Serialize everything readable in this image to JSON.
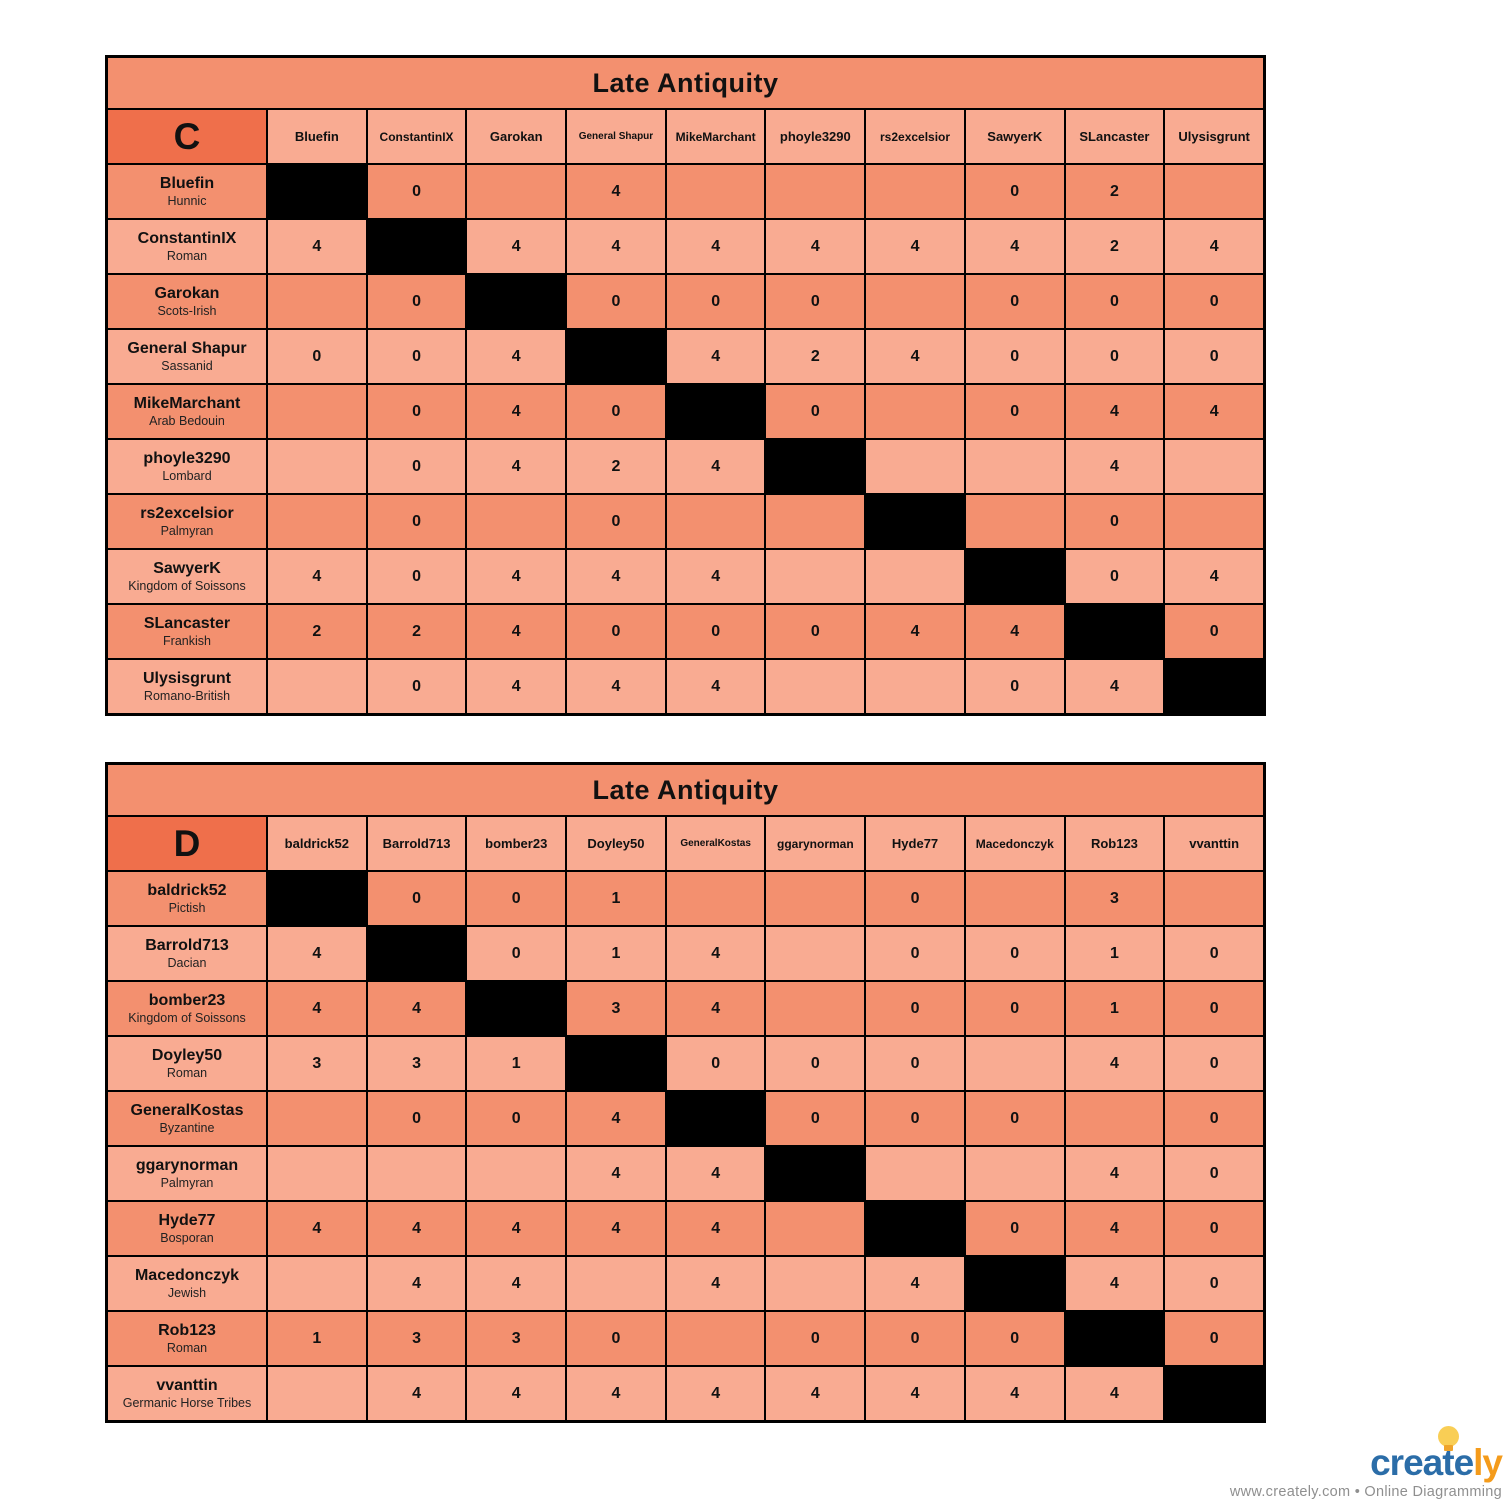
{
  "colors": {
    "row_dark": "#f3906f",
    "row_light": "#f9ab92",
    "corner": "#ef6f4b",
    "grid_line": "#000000",
    "diagonal_fill": "#000000",
    "logo_blue": "#2b6da8",
    "logo_orange": "#f49b1b"
  },
  "branding": {
    "logo_primary": "create",
    "logo_secondary": "ly",
    "tagline": "www.creately.com • Online Diagramming"
  },
  "tables": [
    {
      "title": "Late Antiquity",
      "group_label": "C",
      "columns": [
        "Bluefin",
        "ConstantinIX",
        "Garokan",
        "General Shapur",
        "MikeMarchant",
        "phoyle3290",
        "rs2excelsior",
        "SawyerK",
        "SLancaster",
        "Ulysisgrunt"
      ],
      "rows": [
        {
          "name": "Bluefin",
          "faction": "Hunnic",
          "cells": [
            null,
            "0",
            "",
            "4",
            "",
            "",
            "",
            "0",
            "2",
            ""
          ]
        },
        {
          "name": "ConstantinIX",
          "faction": "Roman",
          "cells": [
            "4",
            null,
            "4",
            "4",
            "4",
            "4",
            "4",
            "4",
            "2",
            "4"
          ]
        },
        {
          "name": "Garokan",
          "faction": "Scots-Irish",
          "cells": [
            "",
            "0",
            null,
            "0",
            "0",
            "0",
            "",
            "0",
            "0",
            "0"
          ]
        },
        {
          "name": "General Shapur",
          "faction": "Sassanid",
          "cells": [
            "0",
            "0",
            "4",
            null,
            "4",
            "2",
            "4",
            "0",
            "0",
            "0"
          ]
        },
        {
          "name": "MikeMarchant",
          "faction": "Arab Bedouin",
          "cells": [
            "",
            "0",
            "4",
            "0",
            null,
            "0",
            "",
            "0",
            "4",
            "4"
          ]
        },
        {
          "name": "phoyle3290",
          "faction": "Lombard",
          "cells": [
            "",
            "0",
            "4",
            "2",
            "4",
            null,
            "",
            "",
            "4",
            ""
          ]
        },
        {
          "name": "rs2excelsior",
          "faction": "Palmyran",
          "cells": [
            "",
            "0",
            "",
            "0",
            "",
            "",
            null,
            "",
            "0",
            ""
          ]
        },
        {
          "name": "SawyerK",
          "faction": "Kingdom of Soissons",
          "cells": [
            "4",
            "0",
            "4",
            "4",
            "4",
            "",
            "",
            null,
            "0",
            "4"
          ]
        },
        {
          "name": "SLancaster",
          "faction": "Frankish",
          "cells": [
            "2",
            "2",
            "4",
            "0",
            "0",
            "0",
            "4",
            "4",
            null,
            "0"
          ]
        },
        {
          "name": "Ulysisgrunt",
          "faction": "Romano-British",
          "cells": [
            "",
            "0",
            "4",
            "4",
            "4",
            "",
            "",
            "0",
            "4",
            null
          ]
        }
      ]
    },
    {
      "title": "Late Antiquity",
      "group_label": "D",
      "columns": [
        "baldrick52",
        "Barrold713",
        "bomber23",
        "Doyley50",
        "GeneralKostas",
        "ggarynorman",
        "Hyde77",
        "Macedonczyk",
        "Rob123",
        "vvanttin"
      ],
      "rows": [
        {
          "name": "baldrick52",
          "faction": "Pictish",
          "cells": [
            null,
            "0",
            "0",
            "1",
            "",
            "",
            "0",
            "",
            "3",
            ""
          ]
        },
        {
          "name": "Barrold713",
          "faction": "Dacian",
          "cells": [
            "4",
            null,
            "0",
            "1",
            "4",
            "",
            "0",
            "0",
            "1",
            "0"
          ]
        },
        {
          "name": "bomber23",
          "faction": "Kingdom of Soissons",
          "cells": [
            "4",
            "4",
            null,
            "3",
            "4",
            "",
            "0",
            "0",
            "1",
            "0"
          ]
        },
        {
          "name": "Doyley50",
          "faction": "Roman",
          "cells": [
            "3",
            "3",
            "1",
            null,
            "0",
            "0",
            "0",
            "",
            "4",
            "0"
          ]
        },
        {
          "name": "GeneralKostas",
          "faction": "Byzantine",
          "cells": [
            "",
            "0",
            "0",
            "4",
            null,
            "0",
            "0",
            "0",
            "",
            "0"
          ]
        },
        {
          "name": "ggarynorman",
          "faction": "Palmyran",
          "cells": [
            "",
            "",
            "",
            "4",
            "4",
            null,
            "",
            "",
            "4",
            "0"
          ]
        },
        {
          "name": "Hyde77",
          "faction": "Bosporan",
          "cells": [
            "4",
            "4",
            "4",
            "4",
            "4",
            "",
            null,
            "0",
            "4",
            "0"
          ]
        },
        {
          "name": "Macedonczyk",
          "faction": "Jewish",
          "cells": [
            "",
            "4",
            "4",
            "",
            "4",
            "",
            "4",
            null,
            "4",
            "0"
          ]
        },
        {
          "name": "Rob123",
          "faction": "Roman",
          "cells": [
            "1",
            "3",
            "3",
            "0",
            "",
            "0",
            "0",
            "0",
            null,
            "0"
          ]
        },
        {
          "name": "vvanttin",
          "faction": "Germanic Horse Tribes",
          "cells": [
            "",
            "4",
            "4",
            "4",
            "4",
            "4",
            "4",
            "4",
            "4",
            null
          ]
        }
      ]
    }
  ]
}
